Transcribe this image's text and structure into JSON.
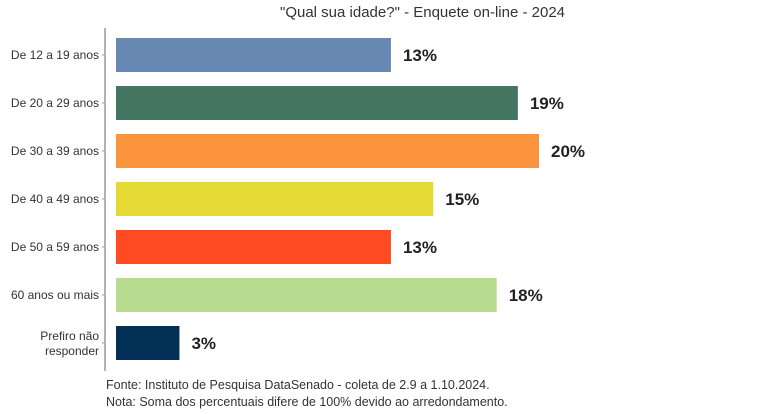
{
  "chart_data": {
    "type": "bar",
    "orientation": "horizontal",
    "title": "\"Qual sua idade?\" - Enquete on-line - 2024",
    "categories": [
      "De 12 a 19 anos",
      "De 20 a 29 anos",
      "De 30 a 39 anos",
      "De 40 a 49 anos",
      "De 50 a 59 anos",
      "60 anos ou mais",
      "Prefiro não responder"
    ],
    "values": [
      13,
      19,
      20,
      15,
      13,
      18,
      3
    ],
    "data_labels": [
      "13%",
      "19%",
      "20%",
      "15%",
      "13%",
      "18%",
      "3%"
    ],
    "colors": [
      "#6688b2",
      "#447662",
      "#fb923c",
      "#e5d936",
      "#ff4a22",
      "#b7dc8f",
      "#033056"
    ],
    "unit": "%",
    "xlim": [
      0,
      20
    ],
    "grid": false,
    "legend": "none"
  },
  "footer": {
    "source": "Fonte: Instituto de Pesquisa DataSenado - coleta de 2.9 a 1.10.2024.",
    "note": "Nota: Soma dos percentuais difere de 100% devido ao arredondamento."
  }
}
